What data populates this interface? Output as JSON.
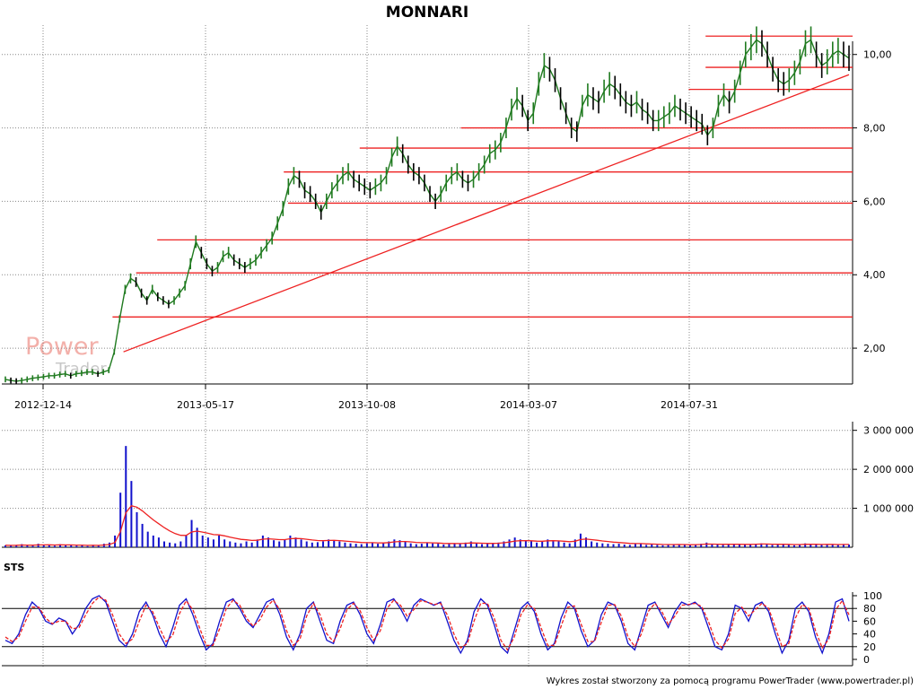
{
  "title": "MONNARI",
  "footer": "Wykres został stworzony za pomocą programu PowerTrader (www.powertrader.pl)",
  "watermark": {
    "line1": "Power",
    "line2": "Trader"
  },
  "colors": {
    "grid": "#888888",
    "resistance": "#ee2222",
    "trend": "#ee2222",
    "price_up": "#1f7a1f",
    "price_down": "#000000",
    "volume": "#1111cc",
    "volume_avg": "#ee2222",
    "sts_k": "#1111cc",
    "sts_d": "#ee2222"
  },
  "chart_data": [
    {
      "type": "line",
      "name": "price",
      "x_ticks": [
        "2012-12-14",
        "2013-05-17",
        "2013-10-08",
        "2014-03-07",
        "2014-07-31"
      ],
      "y_ticks": [
        "2,00",
        "4,00",
        "6,00",
        "8,00",
        "10,00"
      ],
      "ylim": [
        1.0,
        10.8
      ],
      "series": [
        {
          "values": [
            1.15,
            1.12,
            1.1,
            1.12,
            1.15,
            1.18,
            1.2,
            1.22,
            1.25,
            1.25,
            1.28,
            1.3,
            1.25,
            1.3,
            1.32,
            1.35,
            1.35,
            1.3,
            1.35,
            1.4,
            1.9,
            2.8,
            3.6,
            3.9,
            3.8,
            3.5,
            3.3,
            3.6,
            3.4,
            3.3,
            3.2,
            3.3,
            3.5,
            3.7,
            4.3,
            4.9,
            4.6,
            4.3,
            4.1,
            4.2,
            4.5,
            4.6,
            4.4,
            4.3,
            4.2,
            4.3,
            4.4,
            4.6,
            4.8,
            5.0,
            5.4,
            5.8,
            6.4,
            6.7,
            6.6,
            6.3,
            6.2,
            6.0,
            5.7,
            6.0,
            6.3,
            6.5,
            6.7,
            6.8,
            6.6,
            6.5,
            6.4,
            6.3,
            6.4,
            6.5,
            6.7,
            7.2,
            7.5,
            7.3,
            7.0,
            6.8,
            6.7,
            6.5,
            6.2,
            6.0,
            6.2,
            6.5,
            6.7,
            6.8,
            6.6,
            6.5,
            6.6,
            6.8,
            7.0,
            7.3,
            7.4,
            7.6,
            8.0,
            8.5,
            8.8,
            8.6,
            8.2,
            8.4,
            9.2,
            9.7,
            9.6,
            9.3,
            8.8,
            8.4,
            8.0,
            7.9,
            8.6,
            8.9,
            8.8,
            8.7,
            9.0,
            9.2,
            9.1,
            8.9,
            8.7,
            8.6,
            8.7,
            8.5,
            8.4,
            8.2,
            8.2,
            8.3,
            8.4,
            8.6,
            8.5,
            8.4,
            8.3,
            8.2,
            8.1,
            7.8,
            8.0,
            8.6,
            8.9,
            8.7,
            9.0,
            9.5,
            10.0,
            10.2,
            10.4,
            10.3,
            10.0,
            9.6,
            9.3,
            9.2,
            9.3,
            9.5,
            9.8,
            10.3,
            10.4,
            10.0,
            9.7,
            9.8,
            10.0,
            10.1,
            10.0,
            9.9
          ]
        }
      ],
      "resistance_levels": [
        {
          "value": 10.5,
          "from": 0.83
        },
        {
          "value": 9.65,
          "from": 0.83
        },
        {
          "value": 9.05,
          "from": 0.81
        },
        {
          "value": 8.0,
          "from": 0.54
        },
        {
          "value": 7.45,
          "from": 0.42
        },
        {
          "value": 6.8,
          "from": 0.33
        },
        {
          "value": 5.95,
          "from": 0.335
        },
        {
          "value": 4.95,
          "from": 0.18
        },
        {
          "value": 4.05,
          "from": 0.155
        },
        {
          "value": 2.85,
          "from": 0.127
        }
      ],
      "trendline": {
        "from": [
          0.14,
          1.9
        ],
        "to": [
          1.0,
          9.45
        ]
      }
    },
    {
      "type": "bar",
      "name": "volume",
      "y_ticks": [
        "1 000 000",
        "2 000 000",
        "3 000 000"
      ],
      "ylim": [
        0,
        3200000
      ],
      "series": [
        {
          "values": [
            50000,
            40000,
            60000,
            80000,
            50000,
            40000,
            90000,
            60000,
            70000,
            40000,
            80000,
            50000,
            60000,
            40000,
            50000,
            30000,
            60000,
            40000,
            90000,
            120000,
            300000,
            1400000,
            2600000,
            1700000,
            900000,
            600000,
            400000,
            300000,
            250000,
            150000,
            120000,
            100000,
            150000,
            300000,
            700000,
            500000,
            300000,
            250000,
            200000,
            300000,
            200000,
            150000,
            120000,
            100000,
            150000,
            120000,
            200000,
            300000,
            250000,
            180000,
            150000,
            200000,
            300000,
            250000,
            200000,
            150000,
            120000,
            130000,
            150000,
            200000,
            180000,
            150000,
            120000,
            100000,
            90000,
            80000,
            100000,
            120000,
            90000,
            110000,
            150000,
            200000,
            180000,
            150000,
            100000,
            80000,
            90000,
            120000,
            100000,
            90000,
            70000,
            80000,
            100000,
            90000,
            120000,
            150000,
            100000,
            80000,
            90000,
            100000,
            120000,
            150000,
            200000,
            250000,
            200000,
            180000,
            150000,
            120000,
            150000,
            200000,
            180000,
            150000,
            120000,
            100000,
            200000,
            350000,
            250000,
            150000,
            120000,
            100000,
            90000,
            80000,
            90000,
            70000,
            60000,
            80000,
            90000,
            60000,
            70000,
            60000,
            50000,
            60000,
            70000,
            80000,
            60000,
            50000,
            70000,
            90000,
            120000,
            80000,
            70000,
            60000,
            80000,
            90000,
            70000,
            60000,
            80000,
            90000,
            100000,
            80000,
            60000,
            70000,
            80000,
            60000,
            50000,
            70000,
            100000,
            80000,
            70000,
            60000,
            80000,
            70000,
            60000,
            80000,
            70000
          ]
        }
      ]
    },
    {
      "type": "line",
      "name": "STS",
      "y_ticks": [
        "0",
        "20",
        "40",
        "60",
        "80",
        "100"
      ],
      "ylim": [
        0,
        100
      ],
      "reference_lines": [
        20,
        80
      ],
      "series": [
        {
          "values": [
            30,
            25,
            40,
            70,
            90,
            80,
            60,
            55,
            65,
            60,
            40,
            55,
            80,
            95,
            100,
            90,
            60,
            30,
            20,
            40,
            75,
            90,
            70,
            40,
            20,
            50,
            85,
            95,
            70,
            40,
            15,
            25,
            60,
            90,
            95,
            80,
            60,
            50,
            70,
            90,
            95,
            70,
            35,
            15,
            40,
            80,
            90,
            60,
            30,
            25,
            60,
            85,
            90,
            70,
            40,
            25,
            55,
            90,
            95,
            80,
            60,
            85,
            95,
            90,
            85,
            90,
            60,
            30,
            10,
            30,
            75,
            95,
            85,
            55,
            20,
            10,
            45,
            80,
            90,
            75,
            40,
            15,
            25,
            65,
            90,
            80,
            45,
            20,
            30,
            70,
            90,
            85,
            60,
            25,
            15,
            50,
            85,
            90,
            70,
            50,
            75,
            90,
            85,
            90,
            80,
            50,
            20,
            15,
            40,
            85,
            80,
            60,
            85,
            90,
            75,
            40,
            10,
            30,
            80,
            90,
            75,
            35,
            10,
            40,
            90,
            95,
            60
          ]
        },
        {
          "values": [
            35,
            28,
            35,
            60,
            82,
            82,
            65,
            56,
            60,
            60,
            48,
            50,
            70,
            88,
            98,
            93,
            70,
            40,
            25,
            32,
            60,
            85,
            75,
            50,
            28,
            38,
            72,
            92,
            78,
            50,
            22,
            22,
            48,
            80,
            93,
            85,
            65,
            52,
            62,
            82,
            93,
            78,
            45,
            22,
            32,
            68,
            88,
            70,
            40,
            28,
            48,
            78,
            88,
            76,
            50,
            30,
            45,
            80,
            93,
            85,
            68,
            78,
            92,
            90,
            86,
            88,
            70,
            40,
            18,
            25,
            60,
            88,
            88,
            65,
            30,
            15,
            35,
            70,
            86,
            80,
            50,
            22,
            22,
            52,
            82,
            84,
            55,
            28,
            28,
            58,
            85,
            86,
            68,
            35,
            20,
            40,
            75,
            88,
            76,
            55,
            68,
            85,
            86,
            88,
            83,
            60,
            30,
            18,
            32,
            72,
            82,
            68,
            78,
            88,
            80,
            50,
            20,
            25,
            65,
            86,
            80,
            45,
            18,
            32,
            78,
            92,
            70
          ]
        }
      ]
    }
  ]
}
